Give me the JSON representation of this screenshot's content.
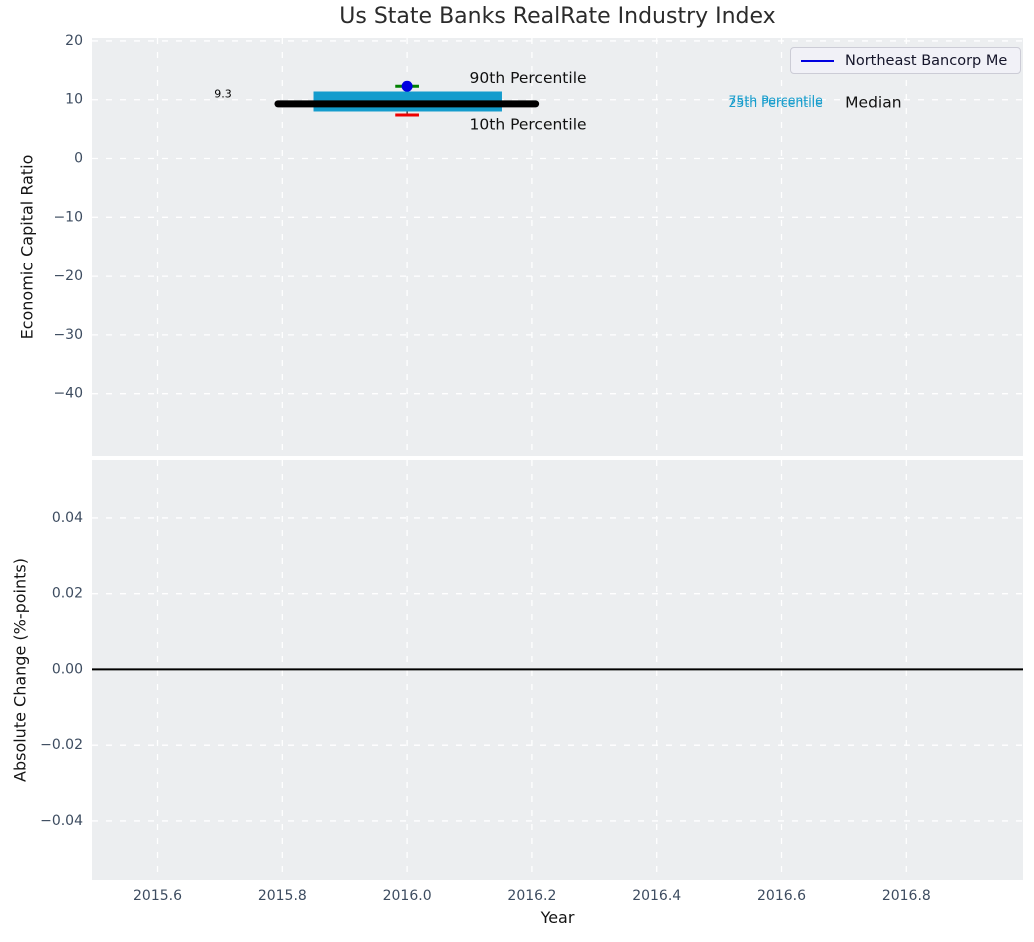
{
  "title": "Us State Banks RealRate Industry Index",
  "legend": {
    "label": "Northeast Bancorp Me",
    "line_color": "#0000e0"
  },
  "colors": {
    "plot_bg": "#eceef0",
    "grid": "#ffffff",
    "tick_label": "#3d4c60",
    "box_fill": "#149ccd",
    "median_line": "#000000",
    "p90_cap": "#008000",
    "p10_cap": "#ee0000",
    "company_point": "#0000e0",
    "zero_line": "#000000",
    "connector": "#222222"
  },
  "chart_data": [
    {
      "type": "box",
      "name": "economic-capital-ratio-panel",
      "title": "Us State Banks RealRate Industry Index",
      "ylabel": "Economic Capital Ratio",
      "xlim": [
        2015.495,
        2016.987
      ],
      "ylim": [
        -50.6,
        20.5
      ],
      "yticks": [
        20,
        10,
        0,
        -10,
        -20,
        -30,
        -40
      ],
      "ytick_labels": [
        "20",
        "10",
        "0",
        "−10",
        "−20",
        "−30",
        "−40"
      ],
      "xticks": [
        2015.6,
        2015.8,
        2016.0,
        2016.2,
        2016.4,
        2016.6,
        2016.8
      ],
      "show_xtick_labels": false,
      "grid": true,
      "legend_position": "upper right",
      "box": {
        "center_x": 2016.0,
        "median": 9.3,
        "median_span": [
          2015.793,
          2016.206
        ],
        "q1": 8.0,
        "q3": 11.4,
        "box_span": [
          2015.85,
          2016.152
        ],
        "p90": 12.3,
        "p10": 7.4,
        "cap_halfwidth": 0.019
      },
      "point": {
        "series": "Northeast Bancorp Me",
        "x": 2016.0,
        "y": 12.3
      },
      "annotations": [
        {
          "text": "9.3",
          "x": 2015.705,
          "y": 11.0,
          "color": "#000000",
          "fontsize": 11,
          "anchor": "middle"
        },
        {
          "text": "90th Percentile",
          "x": 2016.1,
          "y": 13.7,
          "color": "#111111",
          "fontsize": 15.5,
          "anchor": "start"
        },
        {
          "text": "10th Percentile",
          "x": 2016.1,
          "y": 5.8,
          "color": "#111111",
          "fontsize": 15.5,
          "anchor": "start"
        },
        {
          "text": "75th Percentile",
          "x": 2016.515,
          "y": 9.95,
          "color": "#1a9ecd",
          "fontsize": 12.5,
          "anchor": "start"
        },
        {
          "text": "25th Percentile",
          "x": 2016.515,
          "y": 9.55,
          "color": "#1a9ecd",
          "fontsize": 12.5,
          "anchor": "start"
        },
        {
          "text": "Median",
          "x": 2016.702,
          "y": 9.55,
          "color": "#111111",
          "fontsize": 15.5,
          "anchor": "start"
        }
      ]
    },
    {
      "type": "line",
      "name": "absolute-change-panel",
      "ylabel": "Absolute Change (%-points)",
      "xlabel": "Year",
      "xlim": [
        2015.495,
        2016.987
      ],
      "ylim": [
        -0.0556,
        0.0553
      ],
      "yticks": [
        0.04,
        0.02,
        0.0,
        -0.02,
        -0.04
      ],
      "ytick_labels": [
        "0.04",
        "0.02",
        "0.00",
        "−0.02",
        "−0.04"
      ],
      "xticks": [
        2015.6,
        2015.8,
        2016.0,
        2016.2,
        2016.4,
        2016.6,
        2016.8
      ],
      "xtick_labels": [
        "2015.6",
        "2015.8",
        "2016.0",
        "2016.2",
        "2016.4",
        "2016.6",
        "2016.8"
      ],
      "show_xtick_labels": true,
      "grid": true,
      "zero_line": 0.0,
      "series": []
    }
  ]
}
